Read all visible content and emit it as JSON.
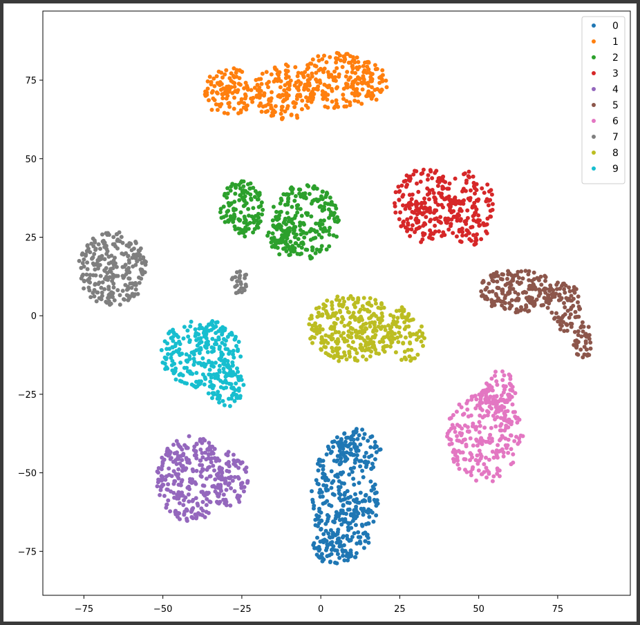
{
  "chart_data": {
    "type": "scatter",
    "title": "",
    "xlabel": "",
    "ylabel": "",
    "xlim": [
      -88,
      98
    ],
    "ylim": [
      -89,
      97
    ],
    "x_ticks": [
      -75,
      -50,
      -25,
      0,
      25,
      50,
      75
    ],
    "y_ticks": [
      -75,
      -50,
      -25,
      0,
      25,
      50,
      75
    ],
    "x_tick_labels": [
      "−75",
      "−50",
      "−25",
      "0",
      "25",
      "50",
      "75"
    ],
    "y_tick_labels": [
      "−75",
      "−50",
      "−25",
      "0",
      "25",
      "50",
      "75"
    ],
    "grid": false,
    "legend_position": "top-right",
    "colors": [
      "#1f77b4",
      "#ff7f0e",
      "#2ca02c",
      "#d62728",
      "#9467bd",
      "#8c564b",
      "#e377c2",
      "#7f7f7f",
      "#bcbd22",
      "#17becf"
    ],
    "series": [
      {
        "name": "0",
        "clusters": [
          {
            "cx": 8,
            "cy": -58,
            "rx": 11,
            "ry": 20,
            "n": 300
          },
          {
            "cx": 4,
            "cy": -74,
            "rx": 7,
            "ry": 5,
            "n": 55
          },
          {
            "cx": 12,
            "cy": -42,
            "rx": 7,
            "ry": 6,
            "n": 60
          }
        ]
      },
      {
        "name": "1",
        "clusters": [
          {
            "cx": -29,
            "cy": 71,
            "rx": 8,
            "ry": 8,
            "n": 110
          },
          {
            "cx": -12,
            "cy": 71,
            "rx": 10,
            "ry": 9,
            "n": 140
          },
          {
            "cx": 5,
            "cy": 75,
            "rx": 11,
            "ry": 9,
            "n": 150
          },
          {
            "cx": 15,
            "cy": 74,
            "rx": 6,
            "ry": 7,
            "n": 70
          }
        ]
      },
      {
        "name": "2",
        "clusters": [
          {
            "cx": -25,
            "cy": 34,
            "rx": 7,
            "ry": 9,
            "n": 130
          },
          {
            "cx": -5,
            "cy": 30,
            "rx": 11,
            "ry": 12,
            "n": 200
          },
          {
            "cx": -12,
            "cy": 25,
            "rx": 5,
            "ry": 7,
            "n": 60
          }
        ]
      },
      {
        "name": "3",
        "clusters": [
          {
            "cx": 33,
            "cy": 35,
            "rx": 10,
            "ry": 12,
            "n": 200
          },
          {
            "cx": 47,
            "cy": 34,
            "rx": 8,
            "ry": 12,
            "n": 130
          }
        ]
      },
      {
        "name": "4",
        "clusters": [
          {
            "cx": -41,
            "cy": -52,
            "rx": 11,
            "ry": 14,
            "n": 260
          },
          {
            "cx": -28,
            "cy": -52,
            "rx": 5,
            "ry": 9,
            "n": 70
          }
        ]
      },
      {
        "name": "5",
        "clusters": [
          {
            "cx": 62,
            "cy": 8,
            "rx": 12,
            "ry": 7,
            "n": 180
          },
          {
            "cx": 77,
            "cy": 3,
            "rx": 6,
            "ry": 8,
            "n": 80
          },
          {
            "cx": 83,
            "cy": -8,
            "rx": 3,
            "ry": 6,
            "n": 40
          }
        ]
      },
      {
        "name": "6",
        "clusters": [
          {
            "cx": 52,
            "cy": -38,
            "rx": 12,
            "ry": 15,
            "n": 260
          },
          {
            "cx": 57,
            "cy": -24,
            "rx": 5,
            "ry": 7,
            "n": 50
          }
        ]
      },
      {
        "name": "7",
        "clusters": [
          {
            "cx": -66,
            "cy": 15,
            "rx": 11,
            "ry": 12,
            "n": 250
          },
          {
            "cx": -26,
            "cy": 11,
            "rx": 3,
            "ry": 4,
            "n": 25
          }
        ]
      },
      {
        "name": "8",
        "clusters": [
          {
            "cx": 10,
            "cy": -4,
            "rx": 14,
            "ry": 11,
            "n": 300
          },
          {
            "cx": 27,
            "cy": -6,
            "rx": 6,
            "ry": 9,
            "n": 70
          }
        ]
      },
      {
        "name": "9",
        "clusters": [
          {
            "cx": -38,
            "cy": -12,
            "rx": 13,
            "ry": 11,
            "n": 250
          },
          {
            "cx": -30,
            "cy": -22,
            "rx": 6,
            "ry": 7,
            "n": 70
          }
        ]
      }
    ]
  }
}
